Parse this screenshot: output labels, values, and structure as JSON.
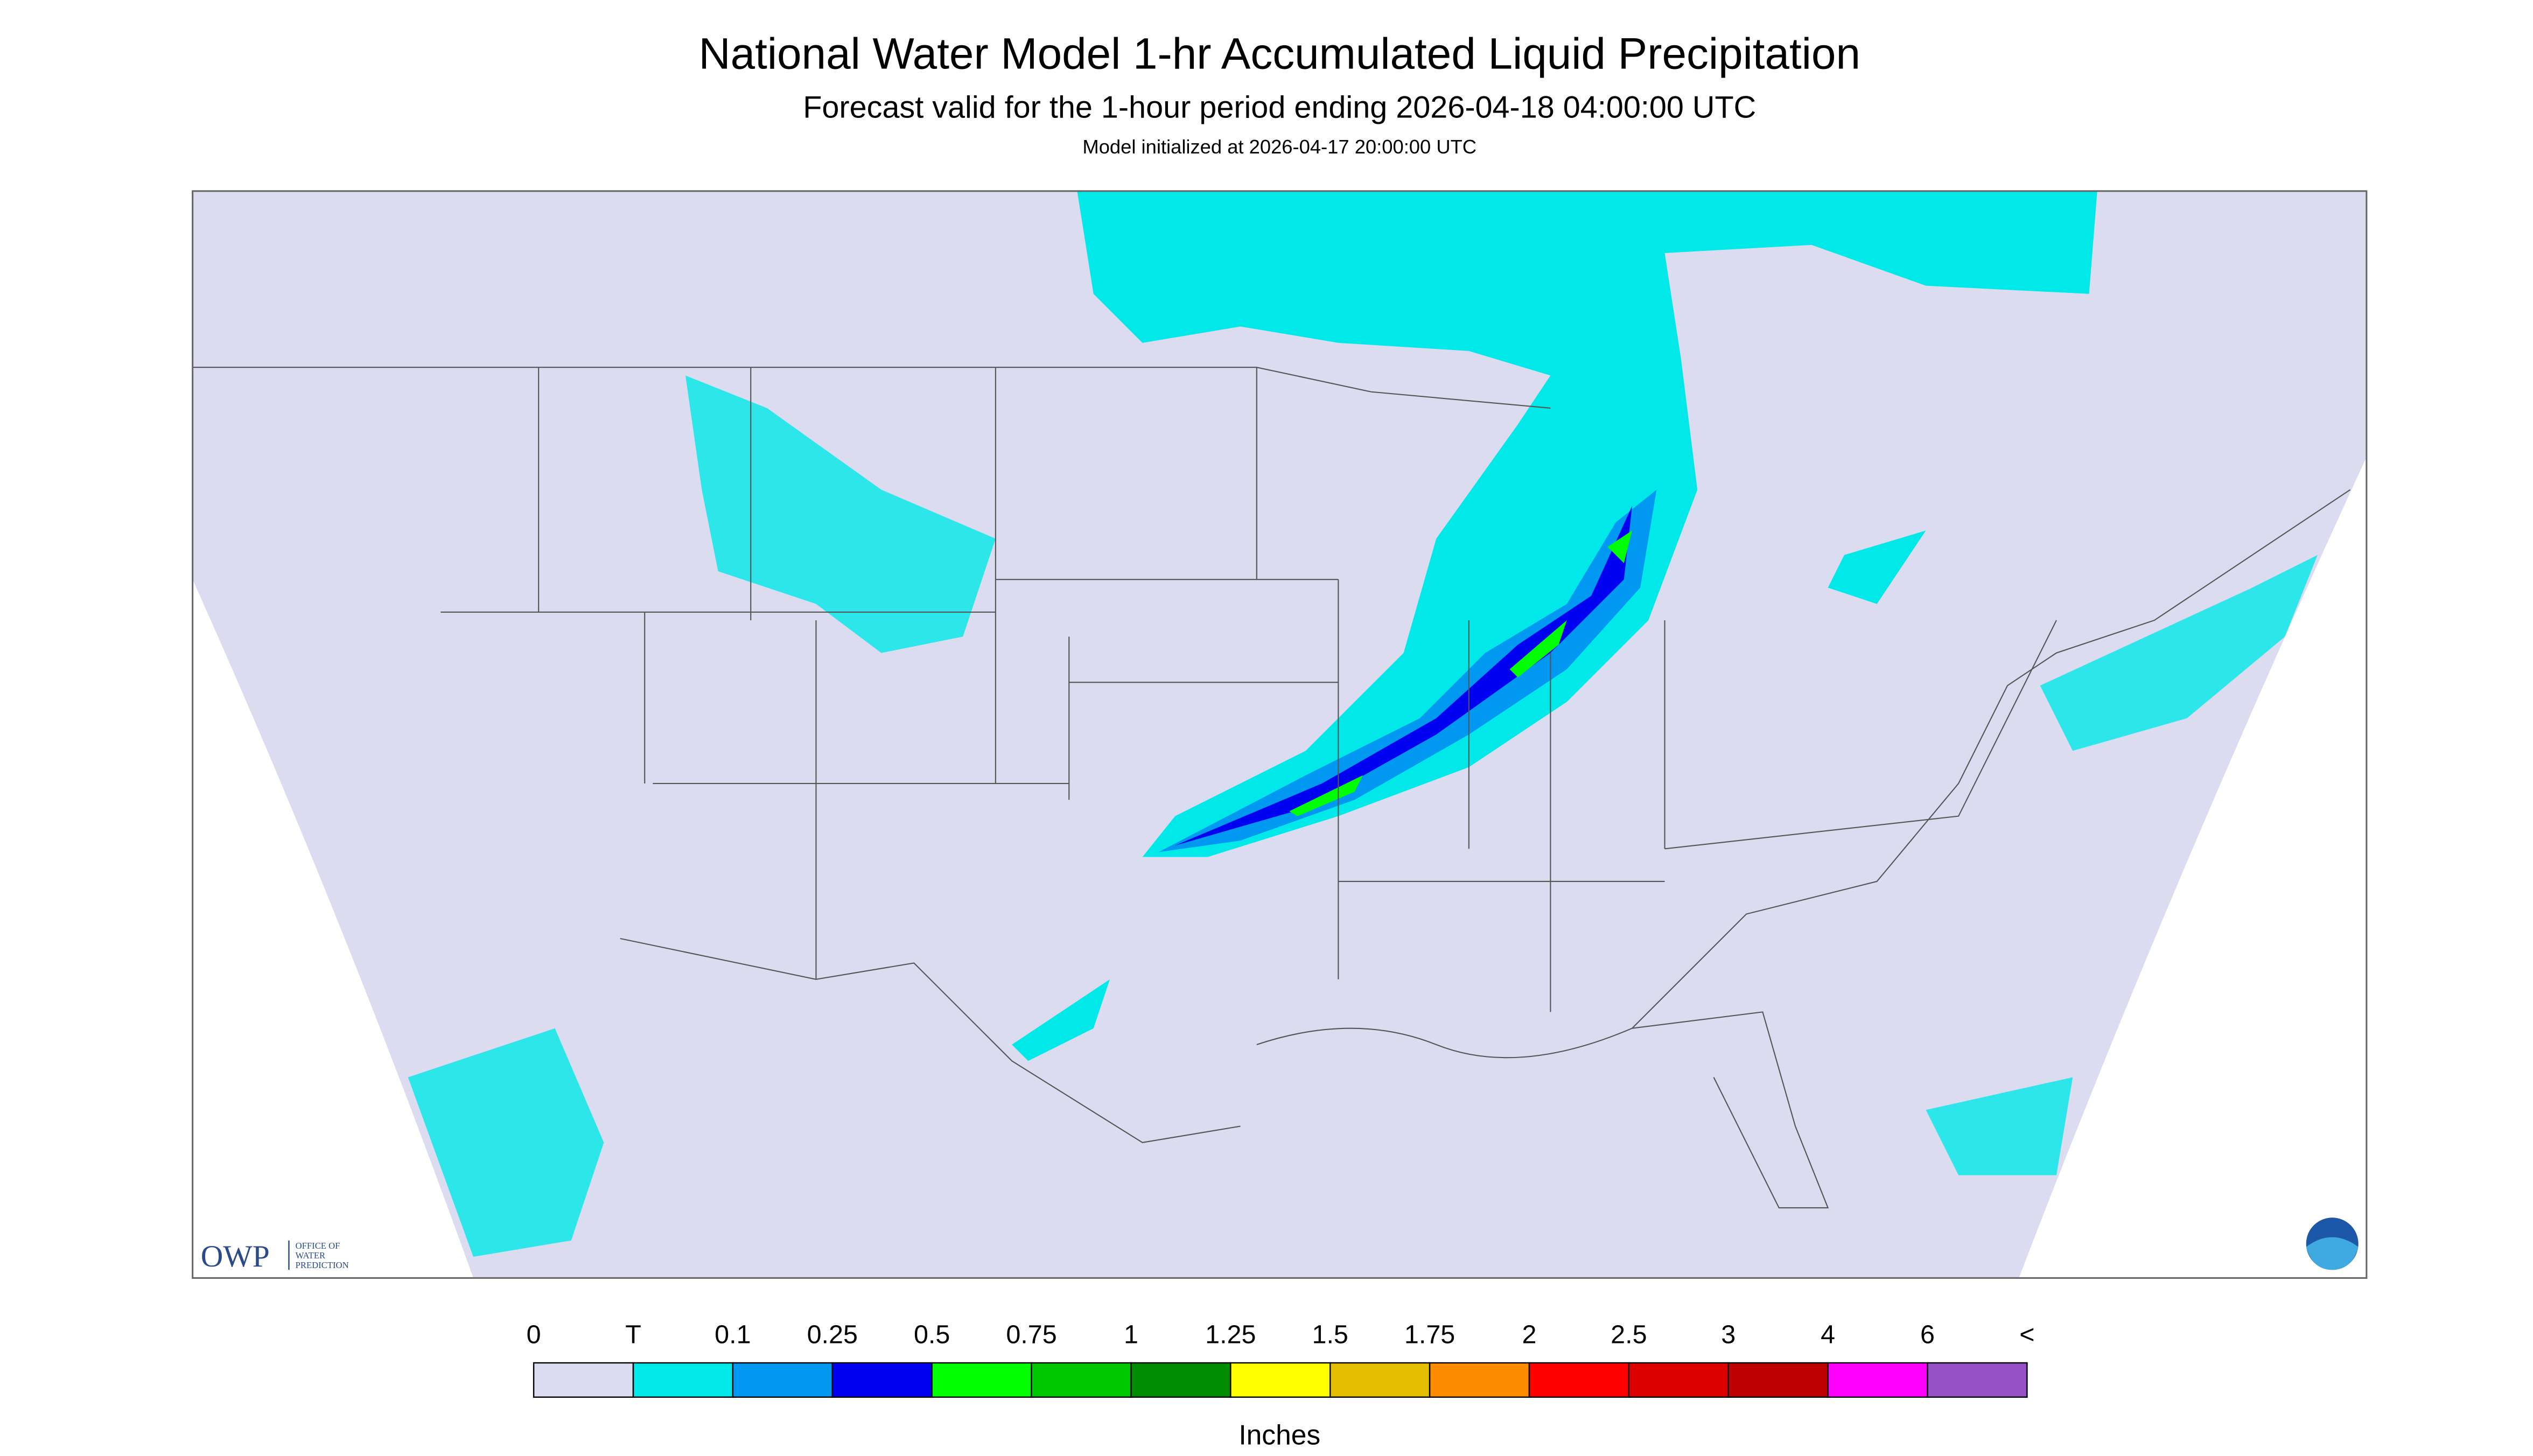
{
  "header": {
    "title": "National Water Model 1-hr Accumulated Liquid Precipitation",
    "subtitle": "Forecast valid for the 1-hour period ending 2026-04-18 04:00:00 UTC",
    "init": "Model initialized at 2026-04-17 20:00:00 UTC"
  },
  "logo": {
    "owp": "OWP",
    "office": "OFFICE OF",
    "water": "WATER",
    "prediction": "PREDICTION"
  },
  "legend": {
    "labels": [
      "0",
      "T",
      "0.1",
      "0.25",
      "0.5",
      "0.75",
      "1",
      "1.25",
      "1.5",
      "1.75",
      "2",
      "2.5",
      "3",
      "4",
      "6",
      "<"
    ],
    "colors": [
      "#dcdcf0",
      "#00e8e8",
      "#0098f0",
      "#0000f0",
      "#00ff00",
      "#00c800",
      "#008c00",
      "#ffff00",
      "#e6be00",
      "#ff8c00",
      "#ff0000",
      "#dc0000",
      "#be0000",
      "#ff00ff",
      "#9650c8"
    ],
    "unit": "Inches"
  }
}
